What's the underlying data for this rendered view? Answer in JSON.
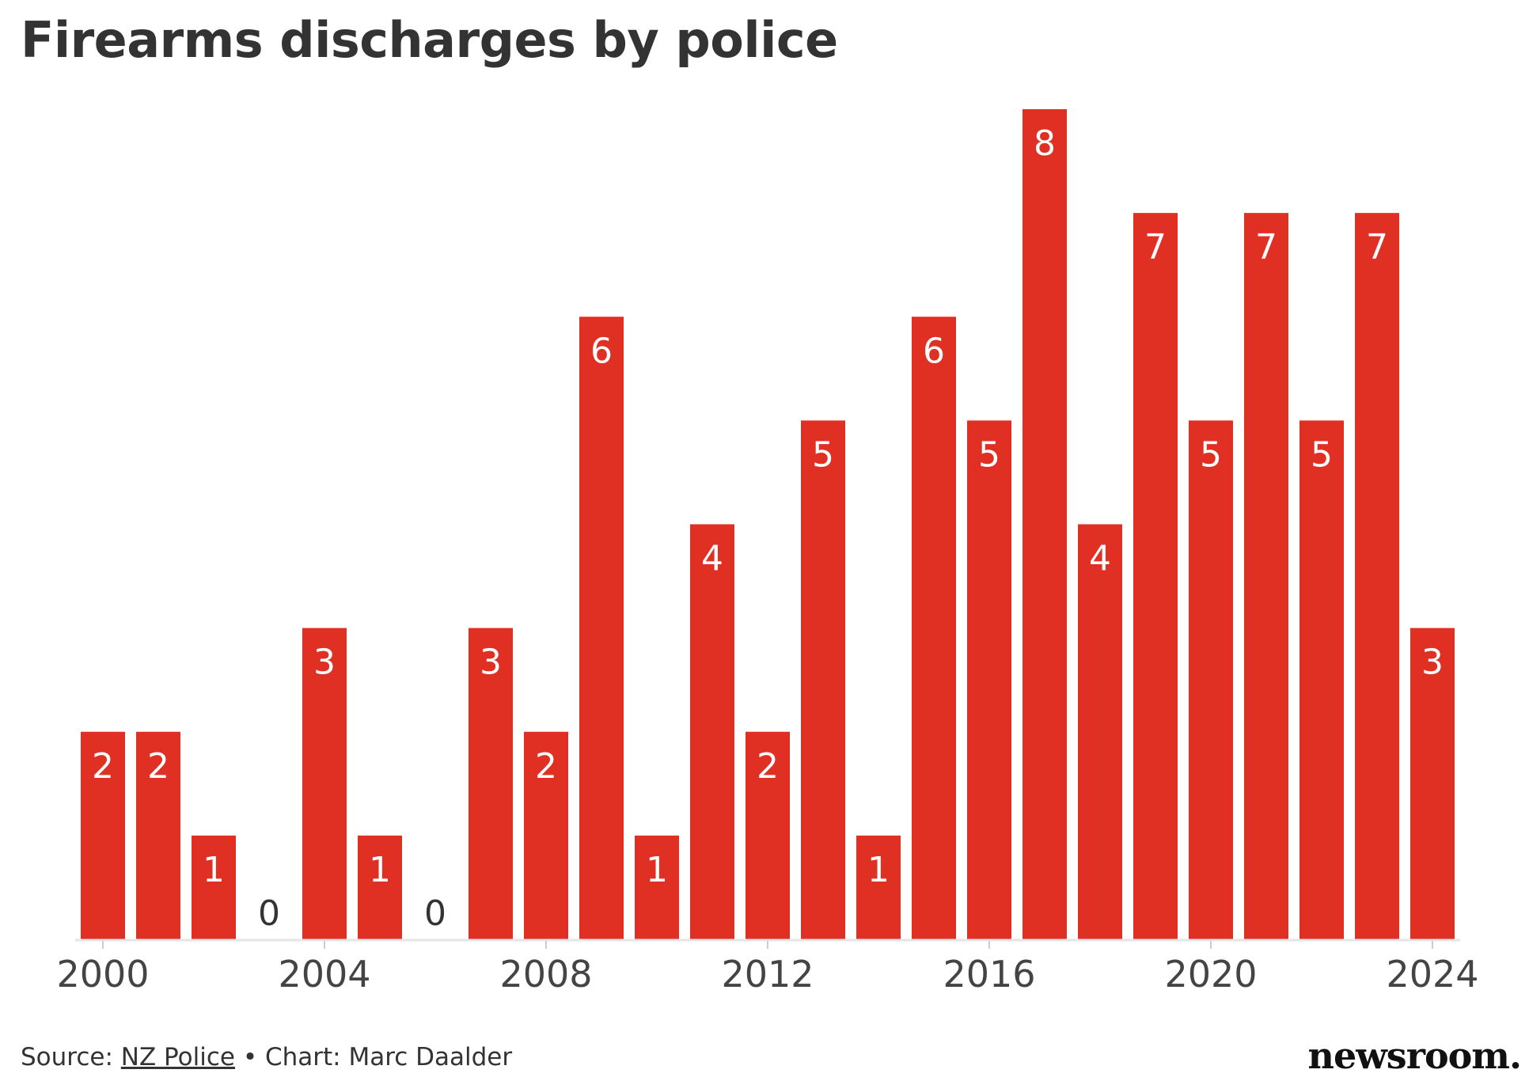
{
  "chart_data": {
    "type": "bar",
    "title": "Firearms discharges by police",
    "categories": [
      "2000",
      "2001",
      "2002",
      "2003",
      "2004",
      "2005",
      "2006",
      "2007",
      "2008",
      "2009",
      "2010",
      "2011",
      "2012",
      "2013",
      "2014",
      "2015",
      "2016",
      "2017",
      "2018",
      "2019",
      "2020",
      "2021",
      "2022",
      "2023",
      "2024"
    ],
    "values": [
      2,
      2,
      1,
      0,
      3,
      1,
      0,
      3,
      2,
      6,
      1,
      4,
      2,
      5,
      1,
      6,
      5,
      8,
      4,
      7,
      5,
      7,
      5,
      7,
      3
    ],
    "x_tick_labels": [
      "2000",
      "2004",
      "2008",
      "2012",
      "2016",
      "2020",
      "2024"
    ],
    "ylim": [
      0,
      8
    ],
    "xlabel": "",
    "ylabel": "",
    "grid": false,
    "data_labels": true,
    "bar_color": "#e03024",
    "label_color_inside": "#ffffff",
    "label_color_zero": "#333333"
  },
  "footer": {
    "source_prefix": "Source: ",
    "source_link": "NZ Police",
    "credit": " • Chart: Marc Daalder"
  },
  "brand": {
    "logo_text": "newsroom."
  }
}
